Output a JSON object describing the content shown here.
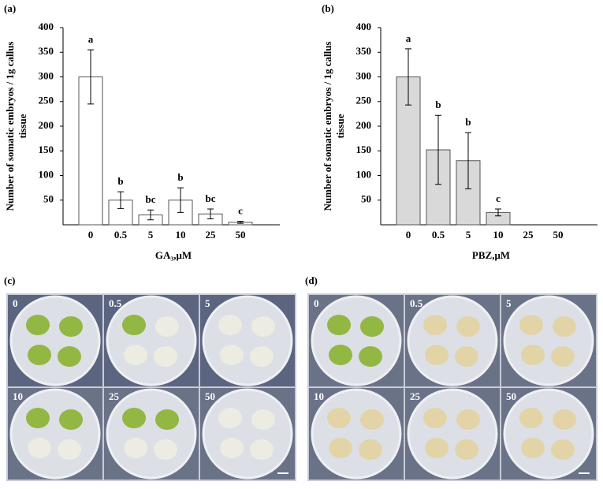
{
  "chart_data": [
    {
      "type": "bar",
      "panel": "(a)",
      "ylabel": [
        "Number of somatic embryos / 1g callus",
        "tissue"
      ],
      "xlabel": "GA₃,μM",
      "categories": [
        "0",
        "0.5",
        "5",
        "10",
        "25",
        "50"
      ],
      "values": [
        300,
        50,
        20,
        50,
        22,
        5
      ],
      "errors": [
        55,
        17,
        10,
        25,
        10,
        2
      ],
      "letters": [
        "a",
        "b",
        "bc",
        "b",
        "bc",
        "c"
      ],
      "color": "#ffffff",
      "ylim": [
        0,
        400
      ],
      "yticks": [
        50,
        100,
        150,
        200,
        250,
        300,
        350,
        400
      ]
    },
    {
      "type": "bar",
      "panel": "(b)",
      "ylabel": [
        "Number of somatic embryos / 1g callus",
        "tissue"
      ],
      "xlabel": "PBZ,μM",
      "categories": [
        "0",
        "0.5",
        "5",
        "10",
        "25",
        "50"
      ],
      "values": [
        300,
        152,
        130,
        25,
        0,
        0
      ],
      "errors": [
        57,
        70,
        57,
        7,
        null,
        null
      ],
      "letters": [
        "a",
        "b",
        "b",
        "c",
        null,
        null
      ],
      "color": "#d9d9d9",
      "ylim": [
        0,
        400
      ],
      "yticks": [
        50,
        100,
        150,
        200,
        250,
        300,
        350,
        400
      ]
    }
  ],
  "photos": [
    {
      "label": "(c)",
      "tiles": [
        "0",
        "0.5",
        "5",
        "10",
        "25",
        "50"
      ]
    },
    {
      "label": "(d)",
      "tiles": [
        "0",
        "0.5",
        "5",
        "10",
        "25",
        "50"
      ]
    }
  ]
}
